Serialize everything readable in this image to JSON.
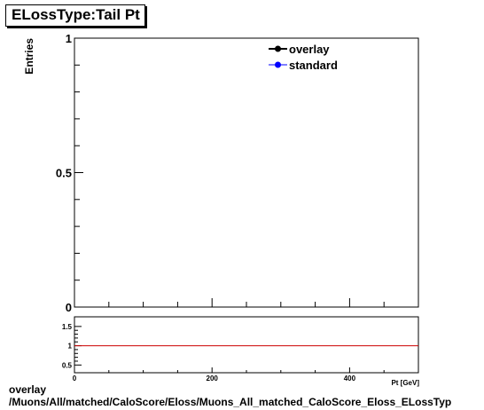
{
  "title": "ELossType:Tail Pt",
  "footer": {
    "line1": "overlay",
    "line2": "/Muons/All/matched/CaloScore/Eloss/Muons_All_matched_CaloScore_Eloss_ELossTyp"
  },
  "chart_data": [
    {
      "type": "line",
      "title": "ELossType:Tail Pt",
      "ylabel": "Entries",
      "xlabel": "",
      "xlim": [
        0,
        500
      ],
      "ylim": [
        0,
        1
      ],
      "y_ticks": [
        0,
        0.5,
        1
      ],
      "y_tick_labels": [
        "0",
        "0.5",
        "1"
      ],
      "x_ticks": [
        0,
        200,
        400
      ],
      "legend_position": "top-right",
      "series": [
        {
          "name": "overlay",
          "color": "#000000",
          "values": []
        },
        {
          "name": "standard",
          "color": "#0000ff",
          "values": []
        }
      ],
      "grid": false
    },
    {
      "type": "line",
      "xlim": [
        0,
        500
      ],
      "ylim": [
        0.3,
        1.75
      ],
      "y_ticks": [
        0.5,
        1,
        1.5
      ],
      "y_tick_labels": [
        "0.5",
        "1",
        "1.5"
      ],
      "x_ticks": [
        0,
        200,
        400
      ],
      "x_tick_labels": [
        "0",
        "200",
        "400"
      ],
      "xlabel": "Pt [GeV]",
      "reference_line": {
        "y": 1,
        "color": "#cc0000"
      },
      "grid": false
    }
  ]
}
